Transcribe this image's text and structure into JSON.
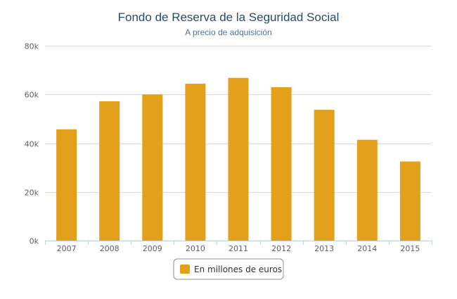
{
  "chart_data": {
    "type": "bar",
    "title": "Fondo de Reserva de la Seguridad Social",
    "subtitle": "A precio de adquisición",
    "xlabel": "",
    "ylabel": "",
    "categories": [
      "2007",
      "2008",
      "2009",
      "2010",
      "2011",
      "2012",
      "2013",
      "2014",
      "2015"
    ],
    "series": [
      {
        "name": "En millones de euros",
        "values": [
          45700,
          57200,
          60000,
          64400,
          66800,
          63000,
          53700,
          41400,
          32500
        ],
        "color": "#e3a01b"
      }
    ],
    "ylim": [
      0,
      80000
    ],
    "yticks": [
      0,
      20000,
      40000,
      60000,
      80000
    ],
    "ytick_labels": [
      "0k",
      "20k",
      "40k",
      "60k",
      "80k"
    ],
    "grid": true,
    "legend": "bottom-center"
  }
}
